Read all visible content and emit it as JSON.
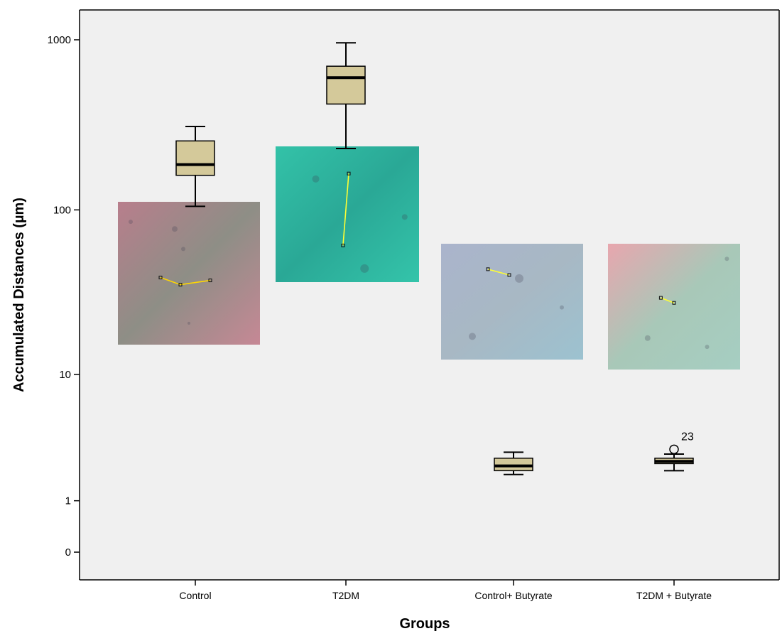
{
  "chart_data": {
    "type": "box",
    "xlabel": "Groups",
    "ylabel": "Accumulated Distances (µm)",
    "y_scale": "log(y+1)",
    "y_ticks": [
      0,
      1,
      10,
      100,
      1000
    ],
    "y_tick_labels": [
      "0",
      "1",
      "10",
      "100",
      "1000"
    ],
    "ylim": [
      -0.3,
      1500
    ],
    "grid": false,
    "background_color": "#f0f0f0",
    "box_color": "#d4c99a",
    "categories": [
      "Control",
      "T2DM",
      "Control+ Butyrate",
      "T2DM + Butyrate"
    ],
    "boxes": [
      {
        "category": "Control",
        "whisker_low": 105,
        "q1": 160,
        "median": 185,
        "q3": 255,
        "whisker_high": 310,
        "outliers": []
      },
      {
        "category": "T2DM",
        "whisker_low": 230,
        "q1": 420,
        "median": 600,
        "q3": 700,
        "whisker_high": 960,
        "outliers": []
      },
      {
        "category": "Control+ Butyrate",
        "whisker_low": 1.85,
        "q1": 2.0,
        "median": 2.2,
        "q3": 2.55,
        "whisker_high": 2.85,
        "outliers": []
      },
      {
        "category": "T2DM + Butyrate",
        "whisker_low": 2.0,
        "q1": 2.3,
        "median": 2.4,
        "q3": 2.55,
        "whisker_high": 2.75,
        "outliers": [
          {
            "value": 3.0,
            "label": "23"
          }
        ]
      }
    ],
    "inset_images": [
      {
        "category": "Control",
        "gradient": [
          "#b87e8c",
          "#8e8e86",
          "#c68895"
        ],
        "track_color": "#ffd700"
      },
      {
        "category": "T2DM",
        "gradient": [
          "#33c2a8",
          "#2aa896",
          "#34c4aa"
        ],
        "track_color": "#ffff33"
      },
      {
        "category": "Control+ Butyrate",
        "gradient": [
          "#aab4cc",
          "#a8b8c4",
          "#9cc2d0"
        ],
        "track_color": "#ffff33"
      },
      {
        "category": "T2DM + Butyrate",
        "gradient": [
          "#e8a6ae",
          "#a8c8b8",
          "#a6cec2"
        ],
        "track_color": "#ffff33"
      }
    ]
  }
}
